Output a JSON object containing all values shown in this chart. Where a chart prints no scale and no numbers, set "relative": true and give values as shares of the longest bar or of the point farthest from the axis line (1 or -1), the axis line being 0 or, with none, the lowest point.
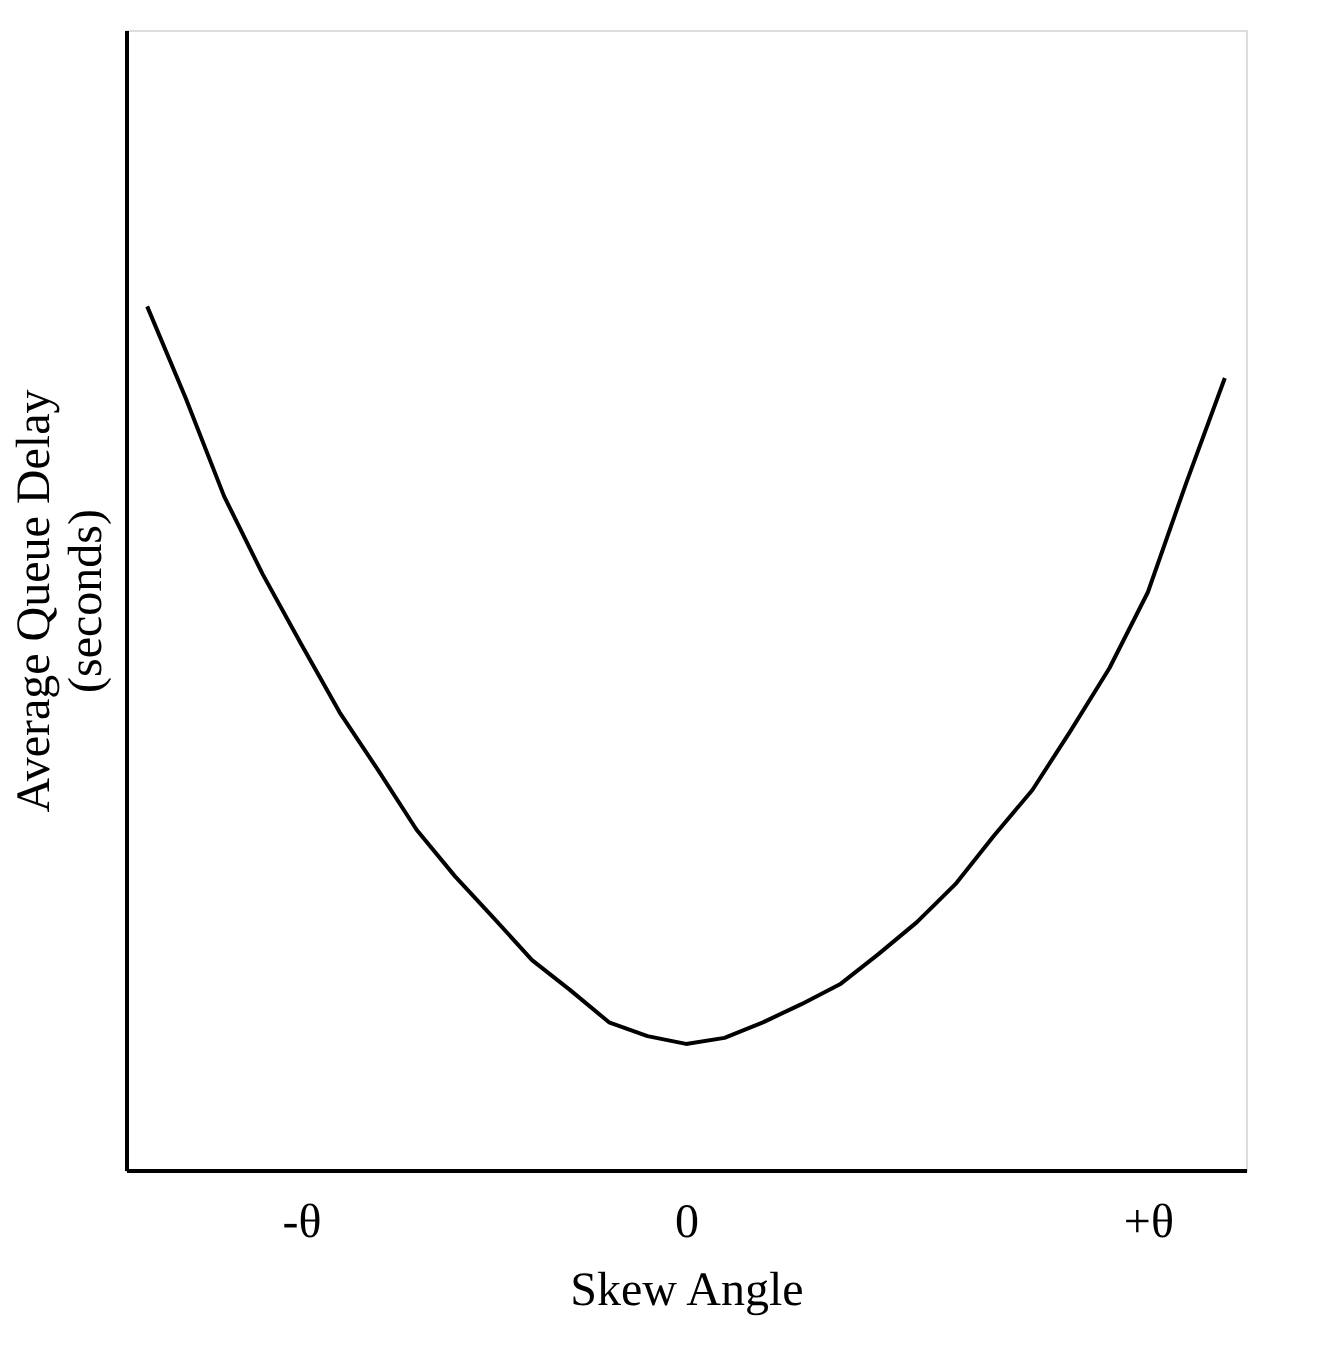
{
  "chart_data": {
    "type": "line",
    "relative": true,
    "xlabel": "Skew Angle",
    "ylabel": "Average Queue Delay\n(seconds)",
    "categories": [
      null,
      null,
      null,
      null,
      "-θ",
      null,
      null,
      null,
      null,
      null,
      null,
      null,
      null,
      null,
      "0",
      null,
      null,
      null,
      null,
      null,
      null,
      null,
      null,
      null,
      null,
      null,
      "+θ",
      null,
      null
    ],
    "values": [
      1.0,
      0.894,
      0.78,
      0.69,
      0.609,
      0.53,
      0.463,
      0.394,
      0.34,
      0.292,
      0.243,
      0.208,
      0.171,
      0.155,
      0.146,
      0.153,
      0.171,
      0.192,
      0.215,
      0.25,
      0.287,
      0.331,
      0.387,
      0.44,
      0.509,
      0.581,
      0.669,
      0.796,
      0.917
    ],
    "color": "#000000",
    "tick_labels": "x",
    "grid": false,
    "marker": "none",
    "line_style": "solid"
  }
}
